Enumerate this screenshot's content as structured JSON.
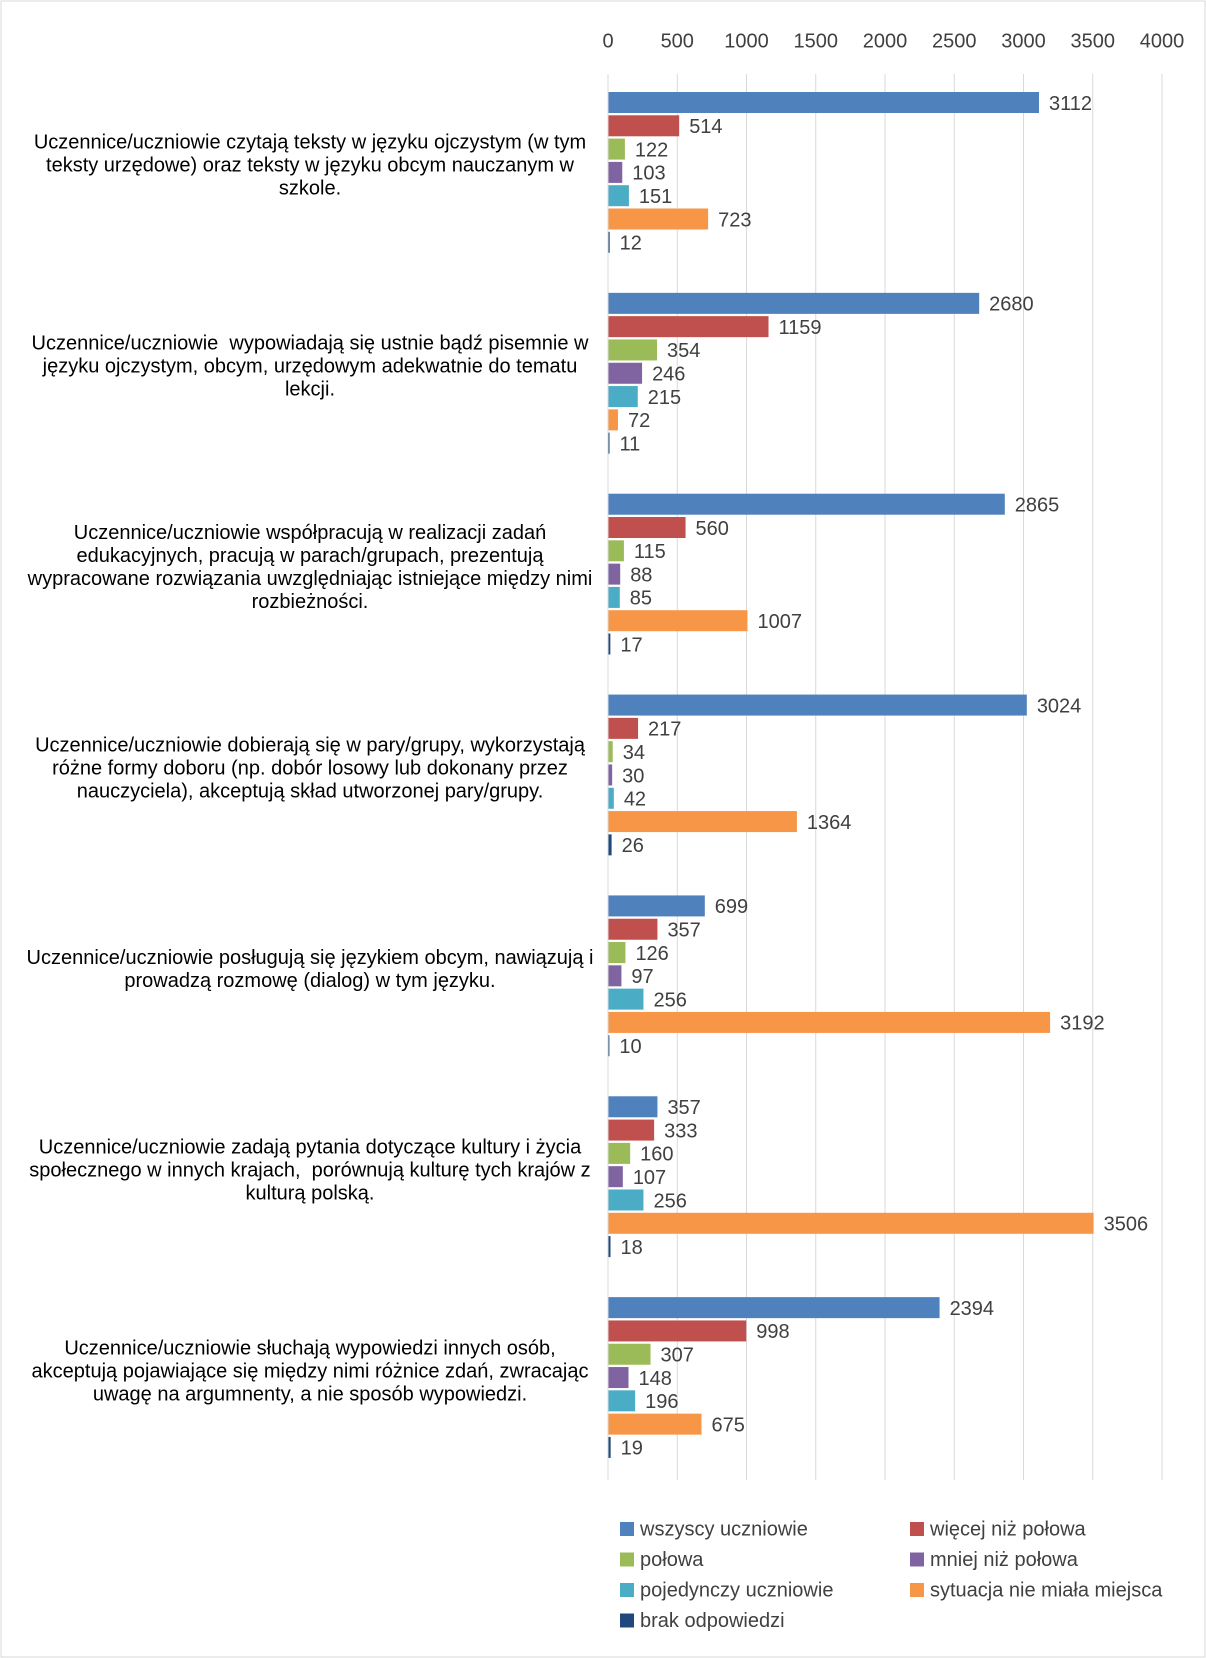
{
  "chart_data": {
    "type": "bar",
    "orientation": "horizontal",
    "categories": [
      "Uczennice/uczniowie czytają teksty w języku ojczystym (w tym teksty urzędowe) oraz teksty w języku obcym nauczanym w szkole.",
      "Uczennice/uczniowie  wypowiadają się ustnie bądź pisemnie w języku ojczystym, obcym, urzędowym adekwatnie do tematu lekcji.",
      "Uczennice/uczniowie współpracują w realizacji zadań edukacyjnych, pracują w parach/grupach, prezentują wypracowane rozwiązania uwzględniając istniejące między nimi  rozbieżności.",
      "Uczennice/uczniowie dobierają się w pary/grupy, wykorzystają różne formy doboru (np. dobór losowy lub dokonany przez nauczyciela), akceptują skład utworzonej pary/grupy.",
      "Uczennice/uczniowie posługują się językiem obcym, nawiązują i prowadzą rozmowę (dialog) w tym języku.",
      "Uczennice/uczniowie zadają pytania dotyczące kultury i życia społecznego w innych krajach,  porównują kulturę tych krajów z kulturą polską.",
      "Uczennice/uczniowie słuchają wypowiedzi innych osób, akceptują pojawiające się między nimi różnice zdań, zwracając uwagę na argumnenty, a nie sposób wypowiedzi."
    ],
    "series": [
      {
        "name": "wszyscy uczniowie",
        "color": "#4f81bd",
        "values": [
          3112,
          2680,
          2865,
          3024,
          699,
          357,
          2394
        ]
      },
      {
        "name": "więcej niż połowa",
        "color": "#c0504d",
        "values": [
          514,
          1159,
          560,
          217,
          357,
          333,
          998
        ]
      },
      {
        "name": "połowa",
        "color": "#9bbb59",
        "values": [
          122,
          354,
          115,
          34,
          126,
          160,
          307
        ]
      },
      {
        "name": "mniej niż połowa",
        "color": "#8064a2",
        "values": [
          103,
          246,
          88,
          30,
          97,
          107,
          148
        ]
      },
      {
        "name": "pojedynczy uczniowie",
        "color": "#4bacc6",
        "values": [
          151,
          215,
          85,
          42,
          256,
          256,
          196
        ]
      },
      {
        "name": "sytuacja nie miała miejsca",
        "color": "#f79646",
        "values": [
          723,
          72,
          1007,
          1364,
          3192,
          3506,
          675
        ]
      },
      {
        "name": "brak odpowiedzi",
        "color": "#1f497d",
        "values": [
          12,
          11,
          17,
          26,
          10,
          18,
          19
        ]
      }
    ],
    "xlim": [
      0,
      4000
    ],
    "xticks": [
      0,
      500,
      1000,
      1500,
      2000,
      2500,
      3000,
      3500,
      4000
    ],
    "grid": true,
    "legend": "bottom"
  }
}
